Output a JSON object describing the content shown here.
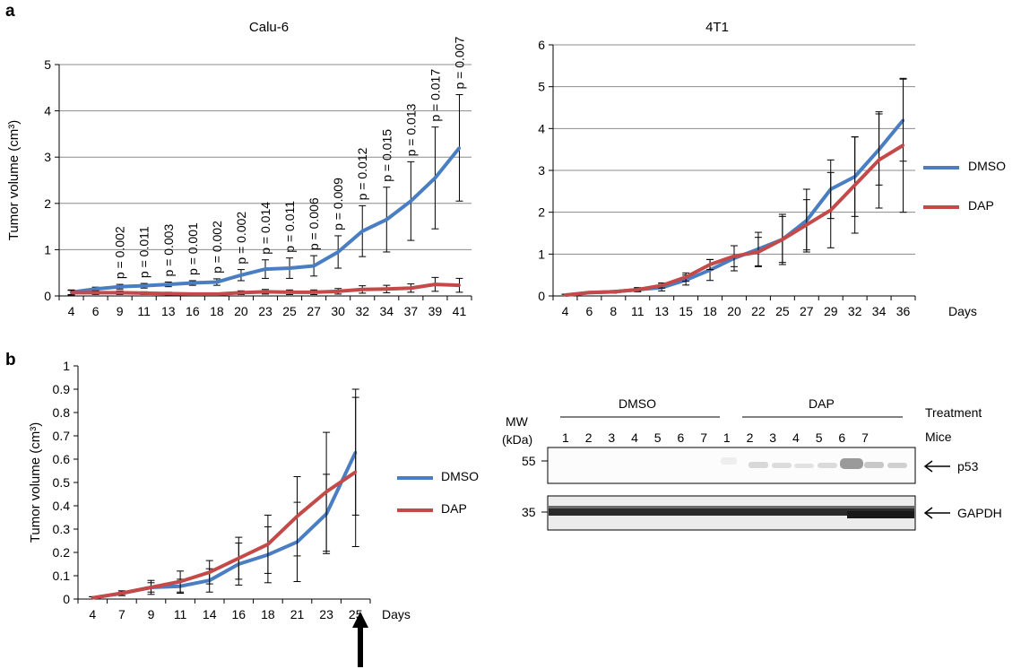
{
  "panels": {
    "a": "a",
    "b": "b"
  },
  "colors": {
    "dmso": "#4a7ec2",
    "dap": "#c44a4a",
    "grid": "#8c8c8c",
    "axis": "#000000"
  },
  "legend": {
    "a": [
      {
        "label": "DMSO",
        "color": "#4a7ec2"
      },
      {
        "label": "DAP",
        "color": "#c44a4a"
      }
    ],
    "b": [
      {
        "label": "DMSO",
        "color": "#4a7ec2"
      },
      {
        "label": "DAP",
        "color": "#c44a4a"
      }
    ]
  },
  "days_label": "Days",
  "chart_data": [
    {
      "id": "calu6",
      "type": "line",
      "title": "Calu-6",
      "ylabel": "Tumor volume (cm³)",
      "xlabel": "",
      "categories": [
        "4",
        "6",
        "9",
        "11",
        "13",
        "16",
        "18",
        "20",
        "23",
        "25",
        "27",
        "30",
        "32",
        "34",
        "37",
        "39",
        "41"
      ],
      "ylim": [
        0,
        5
      ],
      "yticks": [
        "0",
        "1",
        "2",
        "3",
        "4",
        "5"
      ],
      "grid": true,
      "series": [
        {
          "name": "DMSO",
          "values": [
            0.08,
            0.15,
            0.2,
            0.22,
            0.25,
            0.28,
            0.3,
            0.45,
            0.58,
            0.6,
            0.65,
            0.95,
            1.4,
            1.65,
            2.05,
            2.55,
            3.2
          ],
          "errors": [
            0.05,
            0.04,
            0.05,
            0.05,
            0.05,
            0.05,
            0.07,
            0.12,
            0.2,
            0.22,
            0.22,
            0.35,
            0.55,
            0.7,
            0.85,
            1.1,
            1.15
          ]
        },
        {
          "name": "DAP",
          "values": [
            0.07,
            0.07,
            0.07,
            0.06,
            0.05,
            0.04,
            0.04,
            0.07,
            0.09,
            0.08,
            0.08,
            0.1,
            0.14,
            0.15,
            0.17,
            0.25,
            0.23
          ],
          "errors": [
            0.05,
            0.04,
            0.04,
            0.03,
            0.03,
            0.02,
            0.02,
            0.04,
            0.05,
            0.05,
            0.05,
            0.06,
            0.08,
            0.08,
            0.09,
            0.15,
            0.15
          ]
        }
      ],
      "annotations": [
        "",
        "",
        "p = 0.002",
        "p = 0.011",
        "p = 0.003",
        "p = 0.001",
        "p = 0.002",
        "p = 0.002",
        "p = 0.014",
        "p = 0.011",
        "p = 0.006",
        "p = 0.009",
        "p = 0.012",
        "p = 0.015",
        "p = 0.013",
        "p = 0.017",
        "p = 0.007"
      ]
    },
    {
      "id": "t41",
      "type": "line",
      "title": "4T1",
      "ylabel": "",
      "xlabel": "Days",
      "categories": [
        "4",
        "6",
        "8",
        "11",
        "13",
        "15",
        "18",
        "20",
        "22",
        "25",
        "27",
        "29",
        "32",
        "34",
        "36"
      ],
      "ylim": [
        0,
        6
      ],
      "yticks": [
        "0",
        "1",
        "2",
        "3",
        "4",
        "5",
        "6"
      ],
      "grid": true,
      "series": [
        {
          "name": "DMSO",
          "values": [
            0.02,
            0.08,
            0.1,
            0.15,
            0.2,
            0.38,
            0.62,
            0.9,
            1.12,
            1.35,
            1.8,
            2.55,
            2.85,
            3.5,
            4.2
          ],
          "errors": [
            0.02,
            0.02,
            0.03,
            0.05,
            0.08,
            0.12,
            0.25,
            0.3,
            0.4,
            0.6,
            0.75,
            0.7,
            0.95,
            0.85,
            0.98
          ]
        },
        {
          "name": "DAP",
          "values": [
            0.02,
            0.08,
            0.1,
            0.15,
            0.25,
            0.45,
            0.75,
            0.95,
            1.05,
            1.35,
            1.7,
            2.05,
            2.65,
            3.25,
            3.6
          ],
          "errors": [
            0.02,
            0.02,
            0.03,
            0.04,
            0.06,
            0.1,
            0.12,
            0.25,
            0.35,
            0.55,
            0.6,
            0.9,
            1.15,
            1.15,
            1.6
          ]
        }
      ]
    },
    {
      "id": "b",
      "type": "line",
      "title": "",
      "ylabel": "Tumor volume (cm³)",
      "xlabel": "Days",
      "categories": [
        "4",
        "7",
        "9",
        "11",
        "14",
        "16",
        "18",
        "21",
        "23",
        "25"
      ],
      "ylim": [
        0,
        1
      ],
      "yticks": [
        "0",
        "0.1",
        "0.2",
        "0.3",
        "0.4",
        "0.5",
        "0.6",
        "0.7",
        "0.8",
        "0.9",
        "1"
      ],
      "grid": false,
      "series": [
        {
          "name": "DMSO",
          "values": [
            0.005,
            0.025,
            0.05,
            0.055,
            0.08,
            0.15,
            0.19,
            0.245,
            0.365,
            0.63
          ],
          "errors": [
            0.005,
            0.01,
            0.03,
            0.03,
            0.05,
            0.09,
            0.12,
            0.17,
            0.17,
            0.27
          ]
        },
        {
          "name": "DAP",
          "values": [
            0.005,
            0.025,
            0.05,
            0.075,
            0.115,
            0.175,
            0.235,
            0.355,
            0.46,
            0.545
          ],
          "errors": [
            0.005,
            0.01,
            0.02,
            0.045,
            0.05,
            0.09,
            0.125,
            0.17,
            0.255,
            0.32
          ]
        }
      ]
    }
  ],
  "western_blot": {
    "treatment_label": "Treatment",
    "mice_label": "Mice",
    "mw_label": "MW",
    "kda_label": "(kDa)",
    "groups": [
      "DMSO",
      "DAP"
    ],
    "mice": [
      "1",
      "2",
      "3",
      "4",
      "5",
      "6",
      "7",
      "1",
      "2",
      "3",
      "4",
      "5",
      "6",
      "7"
    ],
    "markers": [
      "55",
      "35"
    ],
    "bands": [
      "p53",
      "GAPDH"
    ]
  }
}
